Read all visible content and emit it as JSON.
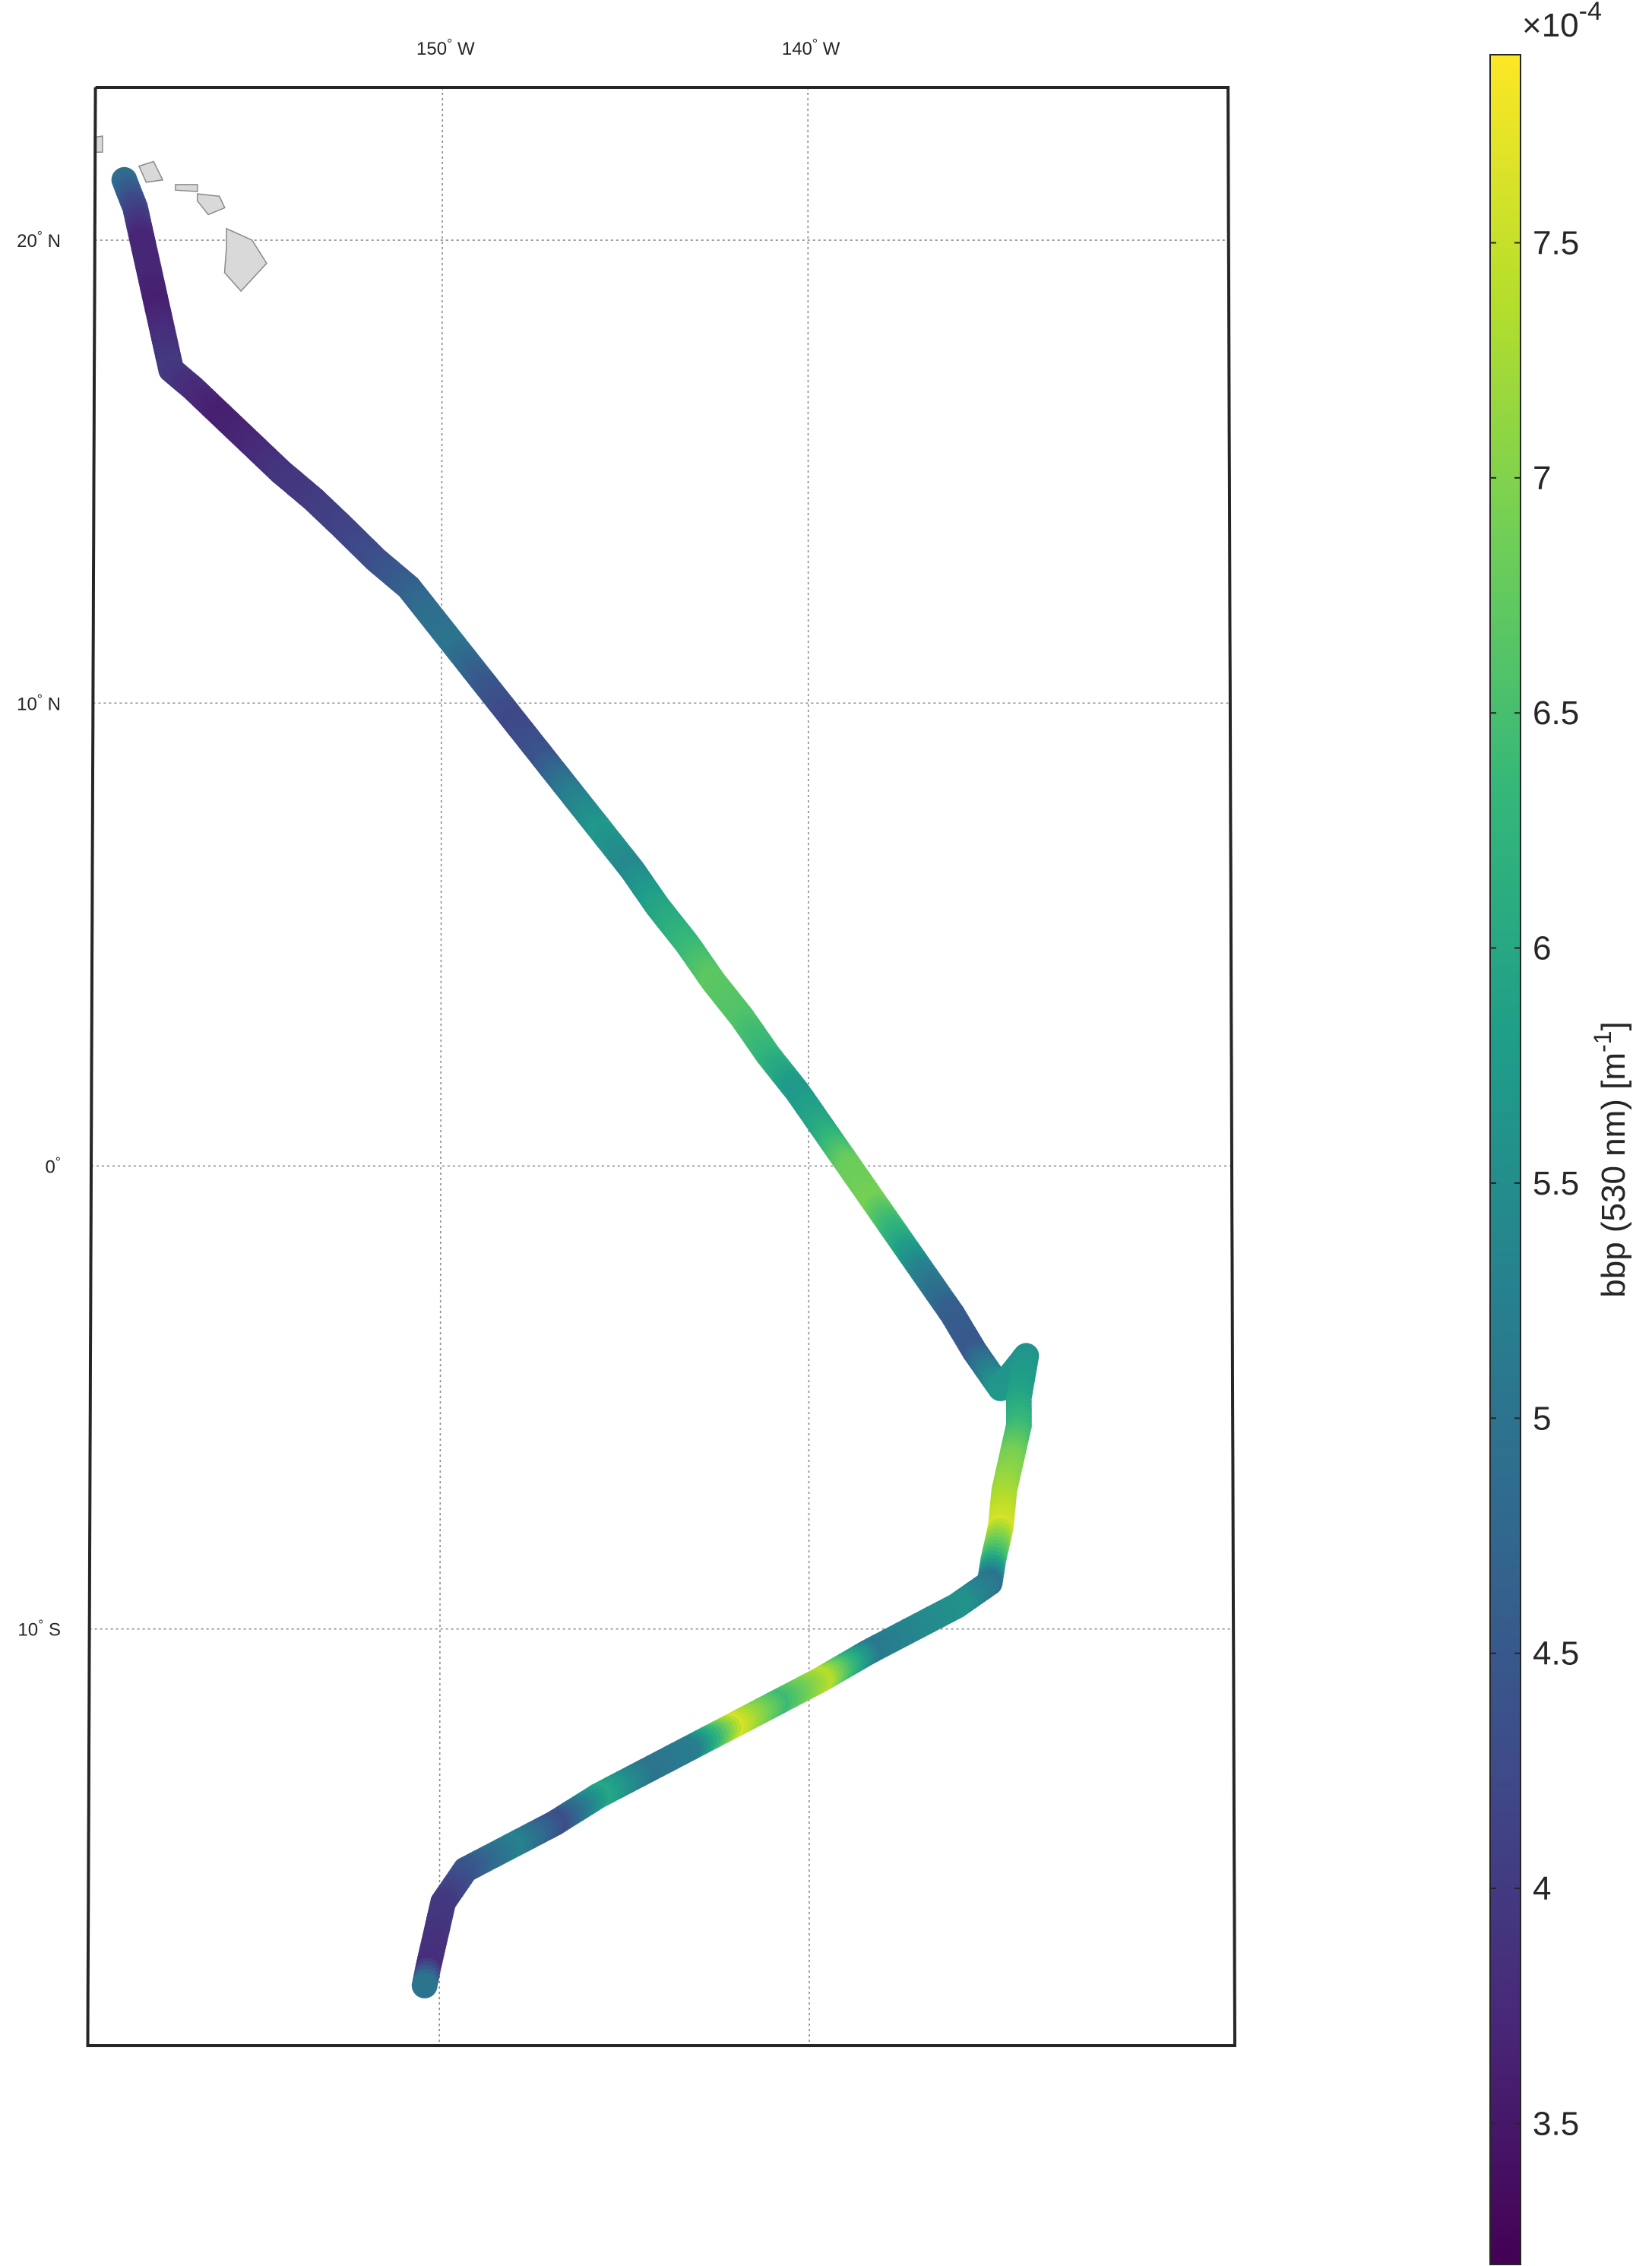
{
  "chart_data": {
    "type": "scatter",
    "title": "",
    "map": {
      "projection": "conic",
      "lon_range": [
        -159.5,
        -128.5
      ],
      "lat_range": [
        -19.0,
        23.3
      ],
      "grid": true,
      "lon_ticks": [
        {
          "value": -150,
          "label": "150° W",
          "deg": "150",
          "hemi": "W"
        },
        {
          "value": -140,
          "label": "140° W",
          "deg": "140",
          "hemi": "W"
        }
      ],
      "lat_ticks": [
        {
          "value": 20,
          "label": "20° N",
          "deg": "20",
          "hemi": "N"
        },
        {
          "value": 10,
          "label": "10° N",
          "deg": "10",
          "hemi": "N"
        },
        {
          "value": 0,
          "label": "0°",
          "deg": "0",
          "hemi": ""
        },
        {
          "value": -10,
          "label": "10° S",
          "deg": "10",
          "hemi": "S"
        }
      ],
      "land": "Hawaiian Islands (grey)"
    },
    "series": [
      {
        "points": [
          {
            "lon": -158.7,
            "lat": 21.3,
            "v": 4.9
          },
          {
            "lon": -158.4,
            "lat": 20.7,
            "v": 4.2
          },
          {
            "lon": -158.2,
            "lat": 20.0,
            "v": 3.7
          },
          {
            "lon": -158.0,
            "lat": 19.3,
            "v": 3.7
          },
          {
            "lon": -157.8,
            "lat": 18.6,
            "v": 3.6
          },
          {
            "lon": -157.6,
            "lat": 17.9,
            "v": 3.8
          },
          {
            "lon": -157.4,
            "lat": 17.2,
            "v": 4.0
          },
          {
            "lon": -156.8,
            "lat": 16.8,
            "v": 3.8
          },
          {
            "lon": -156.0,
            "lat": 16.2,
            "v": 3.6
          },
          {
            "lon": -155.2,
            "lat": 15.6,
            "v": 3.7
          },
          {
            "lon": -154.4,
            "lat": 15.0,
            "v": 3.9
          },
          {
            "lon": -153.5,
            "lat": 14.4,
            "v": 4.0
          },
          {
            "lon": -152.7,
            "lat": 13.8,
            "v": 4.1
          },
          {
            "lon": -151.8,
            "lat": 13.1,
            "v": 4.3
          },
          {
            "lon": -150.9,
            "lat": 12.5,
            "v": 4.6
          },
          {
            "lon": -150.3,
            "lat": 11.9,
            "v": 4.9
          },
          {
            "lon": -149.6,
            "lat": 11.2,
            "v": 5.0
          },
          {
            "lon": -148.8,
            "lat": 10.4,
            "v": 4.5
          },
          {
            "lon": -148.0,
            "lat": 9.6,
            "v": 4.2
          },
          {
            "lon": -147.2,
            "lat": 8.8,
            "v": 4.4
          },
          {
            "lon": -146.4,
            "lat": 8.0,
            "v": 5.2
          },
          {
            "lon": -145.6,
            "lat": 7.2,
            "v": 5.7
          },
          {
            "lon": -144.8,
            "lat": 6.4,
            "v": 5.4
          },
          {
            "lon": -144.1,
            "lat": 5.6,
            "v": 5.9
          },
          {
            "lon": -143.3,
            "lat": 4.8,
            "v": 6.3
          },
          {
            "lon": -142.6,
            "lat": 4.0,
            "v": 6.7
          },
          {
            "lon": -141.8,
            "lat": 3.2,
            "v": 6.6
          },
          {
            "lon": -141.1,
            "lat": 2.4,
            "v": 6.3
          },
          {
            "lon": -140.3,
            "lat": 1.6,
            "v": 5.7
          },
          {
            "lon": -139.6,
            "lat": 0.8,
            "v": 6.0
          },
          {
            "lon": -138.9,
            "lat": 0.0,
            "v": 6.8
          },
          {
            "lon": -138.2,
            "lat": -0.8,
            "v": 6.9
          },
          {
            "lon": -137.5,
            "lat": -1.6,
            "v": 6.1
          },
          {
            "lon": -136.8,
            "lat": -2.4,
            "v": 5.2
          },
          {
            "lon": -136.1,
            "lat": -3.2,
            "v": 4.6
          },
          {
            "lon": -135.5,
            "lat": -4.0,
            "v": 4.5
          },
          {
            "lon": -134.8,
            "lat": -4.8,
            "v": 5.7
          },
          {
            "lon": -134.1,
            "lat": -4.1,
            "v": 5.6
          },
          {
            "lon": -134.3,
            "lat": -5.0,
            "v": 5.9
          },
          {
            "lon": -134.3,
            "lat": -5.6,
            "v": 6.3
          },
          {
            "lon": -134.5,
            "lat": -6.3,
            "v": 6.9
          },
          {
            "lon": -134.7,
            "lat": -7.0,
            "v": 7.2
          },
          {
            "lon": -134.8,
            "lat": -7.8,
            "v": 7.6
          },
          {
            "lon": -135.0,
            "lat": -8.5,
            "v": 6.4
          },
          {
            "lon": -135.1,
            "lat": -9.0,
            "v": 5.0
          },
          {
            "lon": -136.0,
            "lat": -9.5,
            "v": 5.6
          },
          {
            "lon": -137.2,
            "lat": -10.0,
            "v": 5.4
          },
          {
            "lon": -138.4,
            "lat": -10.5,
            "v": 5.1
          },
          {
            "lon": -139.7,
            "lat": -11.1,
            "v": 7.4
          },
          {
            "lon": -140.9,
            "lat": -11.6,
            "v": 6.4
          },
          {
            "lon": -142.1,
            "lat": -12.1,
            "v": 7.6
          },
          {
            "lon": -143.3,
            "lat": -12.6,
            "v": 5.2
          },
          {
            "lon": -144.5,
            "lat": -13.1,
            "v": 5.0
          },
          {
            "lon": -145.7,
            "lat": -13.6,
            "v": 6.0
          },
          {
            "lon": -146.9,
            "lat": -14.2,
            "v": 4.3
          },
          {
            "lon": -148.1,
            "lat": -14.7,
            "v": 5.3
          },
          {
            "lon": -149.3,
            "lat": -15.2,
            "v": 4.5
          },
          {
            "lon": -149.9,
            "lat": -15.9,
            "v": 4.0
          },
          {
            "lon": -150.1,
            "lat": -16.6,
            "v": 3.9
          },
          {
            "lon": -150.3,
            "lat": -17.3,
            "v": 3.8
          },
          {
            "lon": -150.4,
            "lat": -17.7,
            "v": 5.0
          }
        ]
      }
    ],
    "colorbar": {
      "label": "bbp (530 nm) [m",
      "label_sup": "-1",
      "label_end": "]",
      "range": [
        3.2,
        7.9
      ],
      "ticks": [
        "3.5",
        "4",
        "4.5",
        "5",
        "5.5",
        "6",
        "6.5",
        "7",
        "7.5"
      ],
      "multiplier_base": "×10",
      "multiplier_exp": "-4",
      "colormap": "viridis",
      "colormap_colors": [
        "#440154",
        "#482878",
        "#3e4a89",
        "#31688e",
        "#26828e",
        "#1f9e89",
        "#35b779",
        "#6ece58",
        "#b5de2b",
        "#fde725"
      ]
    }
  }
}
